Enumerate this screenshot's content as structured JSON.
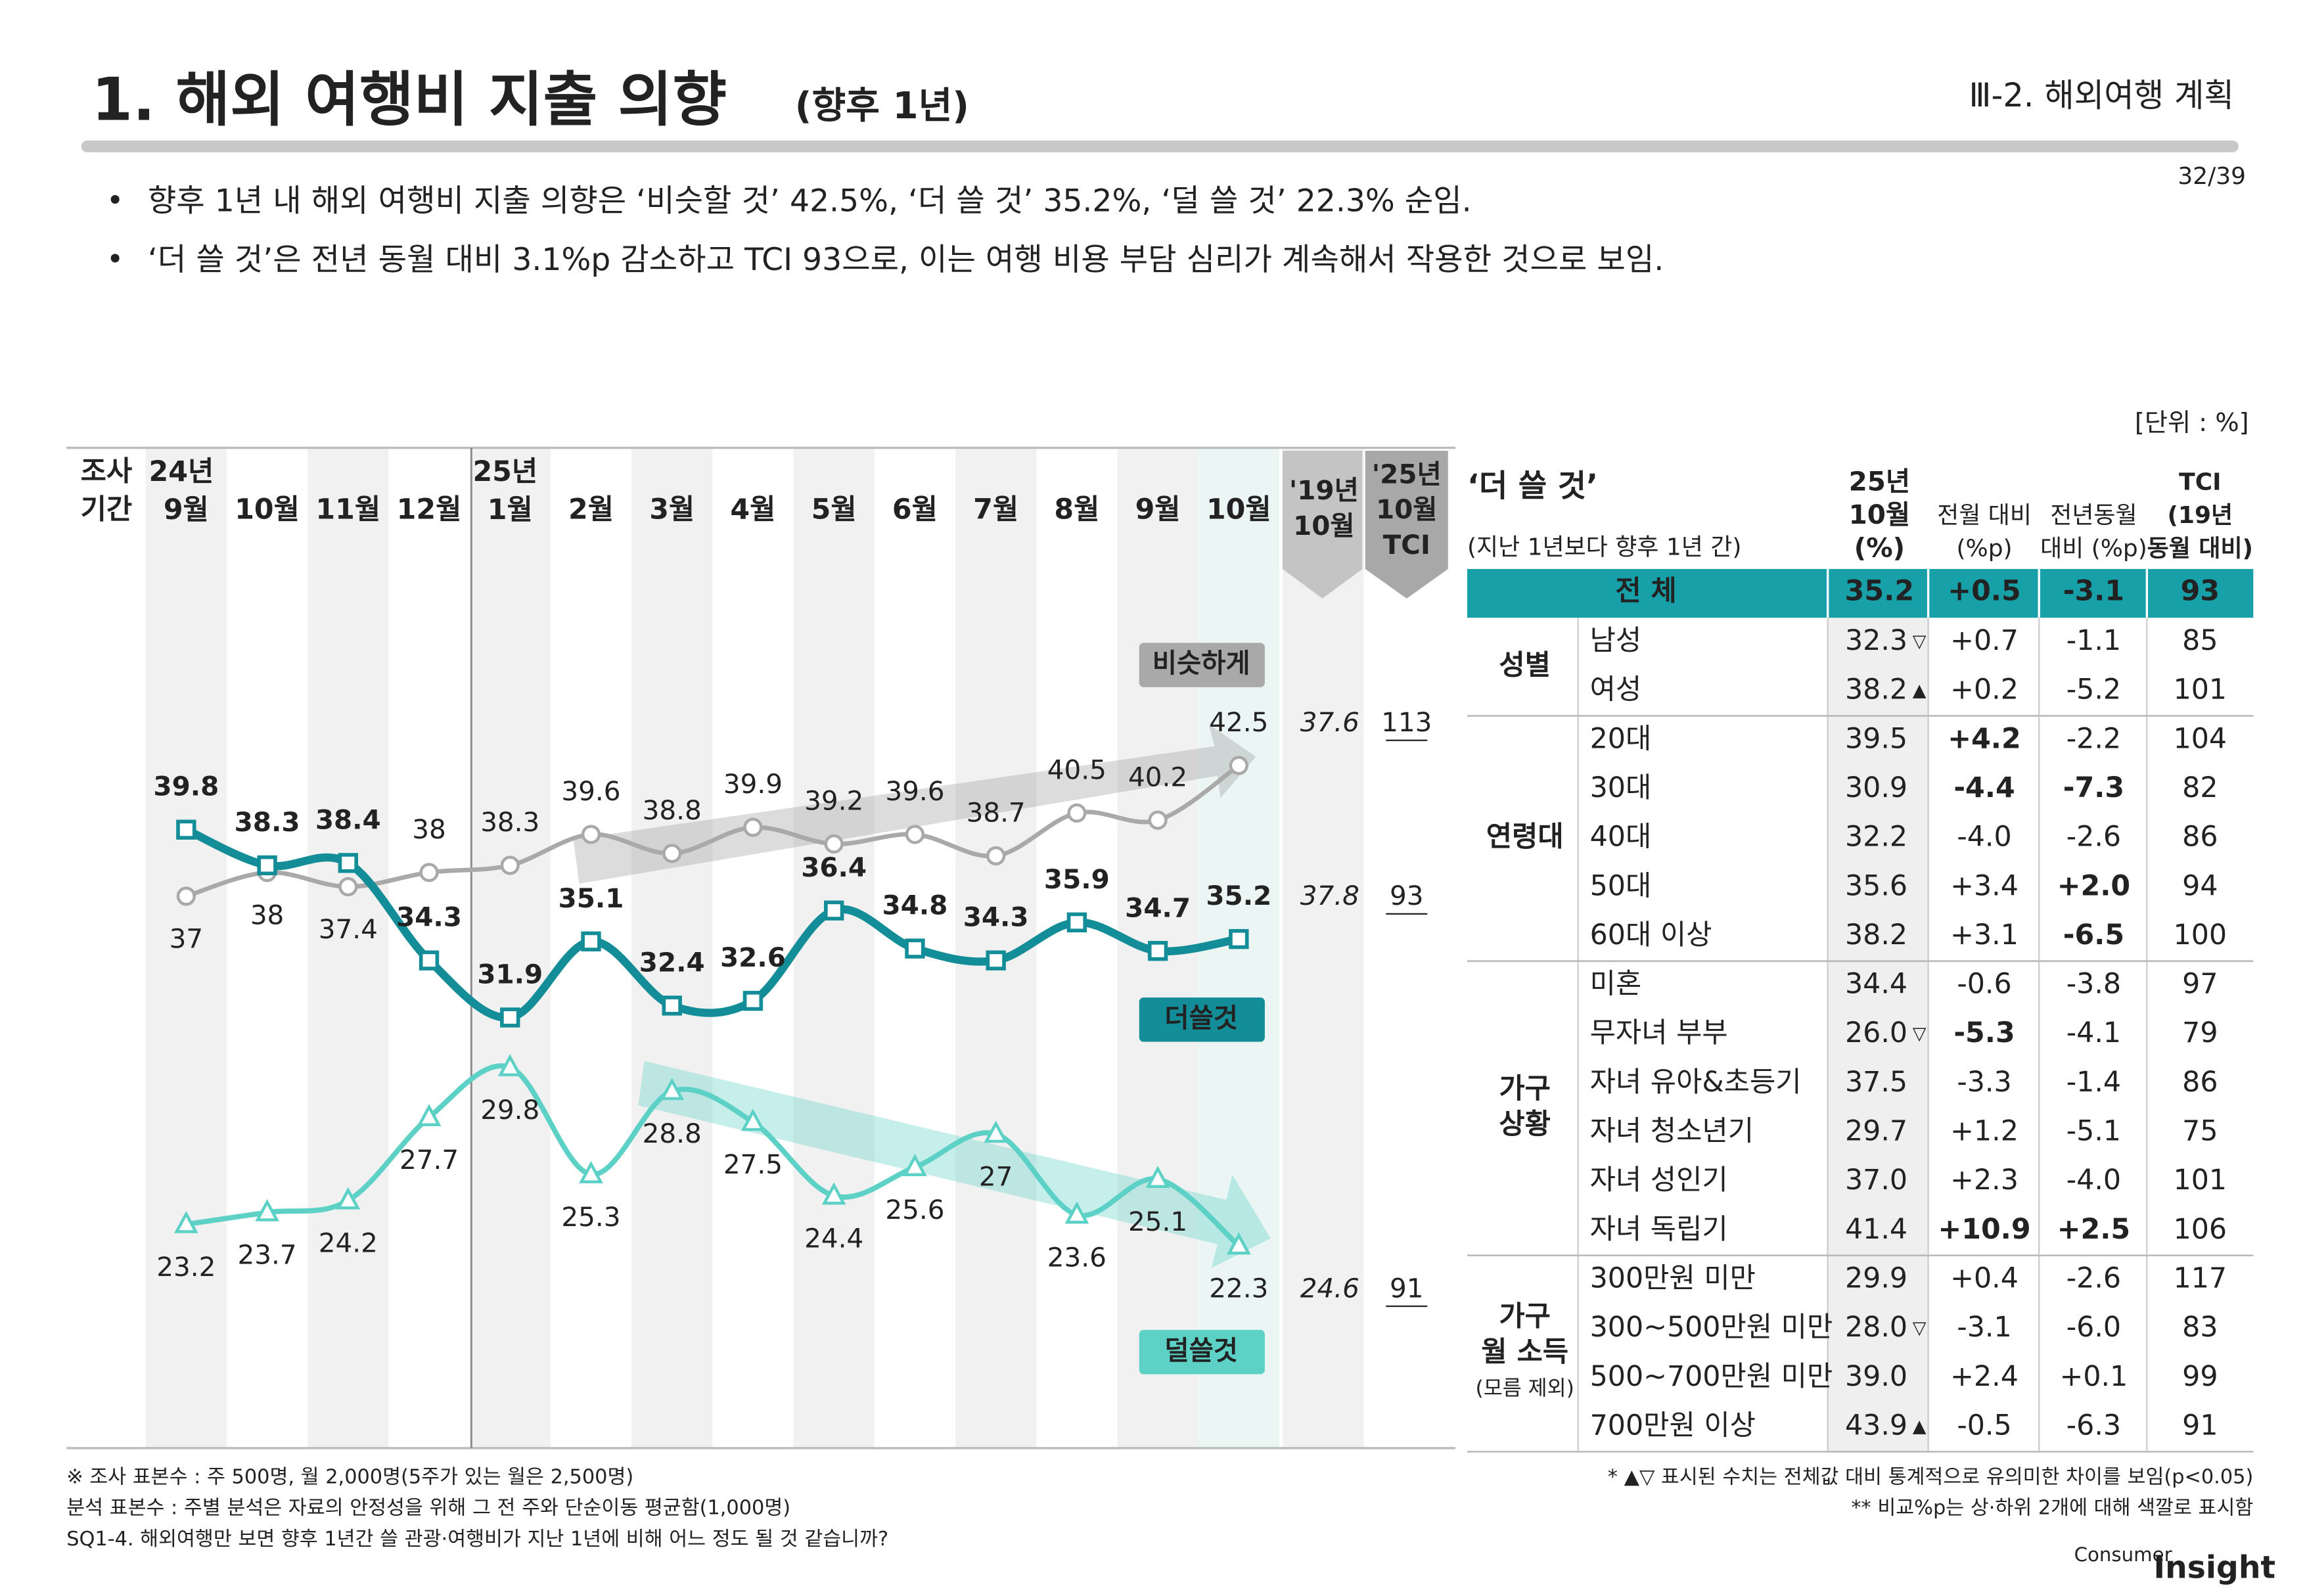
{
  "header": {
    "title": "1. 해외 여행비 지출 의향",
    "title_note": "(향후 1년)",
    "section": "Ⅲ-2. 해외여행 계획",
    "page": "32/39"
  },
  "bullets": [
    "향후 1년 내 해외 여행비 지출 의향은 ‘비슷할 것’ 42.5%, ‘더 쓸 것’ 35.2%, ‘덜 쓸 것’ 22.3% 순임.",
    "‘더 쓸 것’은 전년 동월 대비 3.1%p 감소하고 TCI 93으로, 이는 여행 비용 부담 심리가 계속해서 작용한 것으로 보임."
  ],
  "unit": "[단위 : %]",
  "chart_data": {
    "type": "line",
    "xlabel": [
      "조사",
      "기간"
    ],
    "categories": [
      "24년 9월",
      "10월",
      "11월",
      "12월",
      "25년 1월",
      "2월",
      "3월",
      "4월",
      "5월",
      "6월",
      "7월",
      "8월",
      "9월",
      "10월"
    ],
    "series": [
      {
        "name": "비슷하게",
        "color": "#a9a9a9",
        "marker": "circle",
        "values": [
          37.0,
          38.0,
          37.4,
          38.0,
          38.3,
          39.6,
          38.8,
          39.9,
          39.2,
          39.6,
          38.7,
          40.5,
          40.2,
          42.5
        ]
      },
      {
        "name": "더쓸것",
        "color": "#138d98",
        "marker": "square",
        "values": [
          39.8,
          38.3,
          38.4,
          34.3,
          31.9,
          35.1,
          32.4,
          32.6,
          36.4,
          34.8,
          34.3,
          35.9,
          34.7,
          35.2
        ]
      },
      {
        "name": "덜쓸것",
        "color": "#5dd1c6",
        "marker": "triangle",
        "values": [
          23.2,
          23.7,
          24.2,
          27.7,
          29.8,
          25.3,
          28.8,
          27.5,
          24.4,
          25.6,
          27.0,
          23.6,
          25.1,
          22.3
        ]
      }
    ],
    "comparison": {
      "label": [
        "'19년",
        "10월"
      ],
      "values": [
        37.6,
        37.8,
        24.6
      ]
    },
    "tci": {
      "label": [
        "'25년",
        "10월",
        "TCI"
      ],
      "values": [
        113,
        93,
        91
      ]
    }
  },
  "table": {
    "title": "‘더 쓸 것’",
    "subtitle": "(지난 1년보다 향후 1년 간)",
    "columns": [
      [
        "25년",
        "10월",
        "(%)"
      ],
      [
        "전월 대비",
        "(%p)"
      ],
      [
        "전년동월",
        "대비 (%p)"
      ],
      [
        "TCI",
        "(19년",
        "동월 대비)"
      ]
    ],
    "total": {
      "label": "전 체",
      "values": [
        "35.2",
        "+0.5",
        "-3.1",
        "93"
      ]
    },
    "groups": [
      {
        "label": [
          "성별"
        ],
        "rows": [
          {
            "label": "남성",
            "values": [
              "32.3",
              "+0.7",
              "-1.1",
              "85"
            ],
            "sig": "▽"
          },
          {
            "label": "여성",
            "values": [
              "38.2",
              "+0.2",
              "-5.2",
              "101"
            ],
            "sig": "▲"
          }
        ]
      },
      {
        "label": [
          "연령대"
        ],
        "rows": [
          {
            "label": "20대",
            "values": [
              "39.5",
              "+4.2",
              "-2.2",
              "104"
            ],
            "colors": [
              null,
              "#e00000",
              null,
              null
            ]
          },
          {
            "label": "30대",
            "values": [
              "30.9",
              "-4.4",
              "-7.3",
              "82"
            ],
            "colors": [
              null,
              "#0018d8",
              "#0018d8",
              null
            ]
          },
          {
            "label": "40대",
            "values": [
              "32.2",
              "-4.0",
              "-2.6",
              "86"
            ]
          },
          {
            "label": "50대",
            "values": [
              "35.6",
              "+3.4",
              "+2.0",
              "94"
            ],
            "colors": [
              null,
              null,
              "#e00000",
              null
            ]
          },
          {
            "label": "60대 이상",
            "values": [
              "38.2",
              "+3.1",
              "-6.5",
              "100"
            ],
            "colors": [
              null,
              null,
              "#0018d8",
              null
            ]
          }
        ]
      },
      {
        "label": [
          "가구",
          "상황"
        ],
        "rows": [
          {
            "label": "미혼",
            "values": [
              "34.4",
              "-0.6",
              "-3.8",
              "97"
            ]
          },
          {
            "label": "무자녀 부부",
            "values": [
              "26.0",
              "-5.3",
              "-4.1",
              "79"
            ],
            "sig": "▽",
            "colors": [
              null,
              "#0018d8",
              null,
              null
            ]
          },
          {
            "label": "자녀 유아&초등기",
            "values": [
              "37.5",
              "-3.3",
              "-1.4",
              "86"
            ]
          },
          {
            "label": "자녀 청소년기",
            "values": [
              "29.7",
              "+1.2",
              "-5.1",
              "75"
            ]
          },
          {
            "label": "자녀 성인기",
            "values": [
              "37.0",
              "+2.3",
              "-4.0",
              "101"
            ]
          },
          {
            "label": "자녀 독립기",
            "values": [
              "41.4",
              "+10.9",
              "+2.5",
              "106"
            ],
            "colors": [
              null,
              "#e00000",
              "#e00000",
              null
            ]
          }
        ]
      },
      {
        "label": [
          "가구",
          "월 소득",
          "(모름 제외)"
        ],
        "rows": [
          {
            "label": "300만원 미만",
            "values": [
              "29.9",
              "+0.4",
              "-2.6",
              "117"
            ]
          },
          {
            "label": "300~500만원 미만",
            "values": [
              "28.0",
              "-3.1",
              "-6.0",
              "83"
            ],
            "sig": "▽"
          },
          {
            "label": "500~700만원 미만",
            "values": [
              "39.0",
              "+2.4",
              "+0.1",
              "99"
            ]
          },
          {
            "label": "700만원 이상",
            "values": [
              "43.9",
              "-0.5",
              "-6.3",
              "91"
            ],
            "sig": "▲"
          }
        ]
      }
    ]
  },
  "footnotes": {
    "left": [
      "※ 조사 표본수 : 주 500명, 월 2,000명(5주가 있는 월은 2,500명)",
      "분석 표본수 : 주별 분석은 자료의 안정성을 위해 그 전 주와 단순이동 평균함(1,000명)",
      "SQ1-4. 해외여행만 보면 향후 1년간 쓸 관광·여행비가 지난 1년에 비해 어느 정도 될 것 같습니까?"
    ],
    "right": [
      "* ▲▽ 표시된 수치는 전체값 대비 통계적으로 유의미한 차이를 보임(p<0.05)",
      "** 비교%p는 상·하위 2개에 대해 색깔로 표시함"
    ]
  },
  "logo": {
    "small": "Consumer",
    "big": "Insight"
  }
}
